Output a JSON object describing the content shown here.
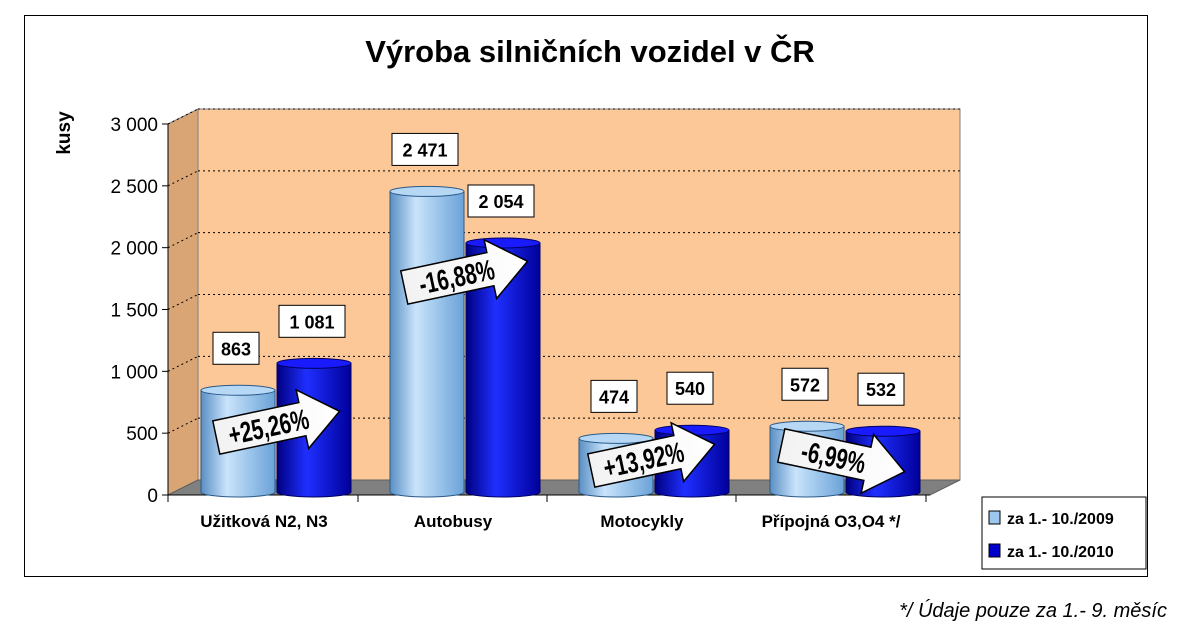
{
  "chart_data": {
    "type": "bar",
    "title": "Výroba silničních vozidel v ČR",
    "xlabel": "",
    "ylabel": "kusy",
    "ylim": [
      0,
      3000
    ],
    "yticks": [
      0,
      500,
      1000,
      1500,
      2000,
      2500,
      3000
    ],
    "ytick_labels": [
      "0",
      "500",
      "1 000",
      "1 500",
      "2 000",
      "2 500",
      "3 000"
    ],
    "categories": [
      "Užitková N2, N3",
      "Autobusy",
      "Motocykly",
      "Přípojná O3,O4 */"
    ],
    "series": [
      {
        "name": "za 1.- 10./2009",
        "values": [
          863,
          2471,
          474,
          572
        ],
        "labels": [
          "863",
          "2 471",
          "474",
          "572"
        ],
        "color": "#9cc8f0"
      },
      {
        "name": "za 1.- 10./2010",
        "values": [
          1081,
          2054,
          540,
          532
        ],
        "labels": [
          "1 081",
          "2 054",
          "540",
          "532"
        ],
        "color": "#0000cc"
      }
    ],
    "change_labels": [
      "+25,26%",
      "-16,88%",
      "+13,92%",
      "-6,99%"
    ],
    "grid": true,
    "legend_position": "bottom-right",
    "plot_background": "#fdc897"
  },
  "footnote": "*/ Údaje pouze za 1.- 9. měsíc"
}
